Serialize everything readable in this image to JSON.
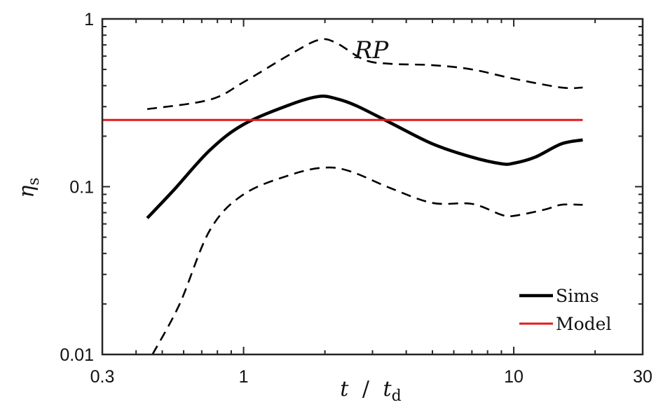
{
  "chart_data": {
    "type": "line",
    "xscale": "log",
    "yscale": "log",
    "xlim": [
      0.3,
      30
    ],
    "ylim": [
      0.01,
      1
    ],
    "xticks": [
      0.3,
      1,
      10,
      30
    ],
    "xtick_labels": [
      "0.3",
      "1",
      "10",
      "30"
    ],
    "yticks": [
      0.01,
      0.1,
      1
    ],
    "ytick_labels": [
      "0.01",
      "0.1",
      "1"
    ],
    "xlabel": {
      "var": "t",
      "sep": "/",
      "var2": "t",
      "sub2": "d"
    },
    "ylabel": {
      "var": "η",
      "sub": "s"
    },
    "annotation": "RP",
    "legend_position": "bottom-right",
    "series": [
      {
        "name": "Sims",
        "legend": true,
        "color": "#000000",
        "style": "solid",
        "x": [
          0.44,
          0.55,
          0.75,
          1.0,
          1.5,
          1.9,
          2.2,
          2.6,
          3.5,
          5,
          7,
          9,
          10,
          12,
          15,
          18
        ],
        "y": [
          0.065,
          0.095,
          0.165,
          0.235,
          0.31,
          0.345,
          0.335,
          0.305,
          0.24,
          0.18,
          0.15,
          0.137,
          0.138,
          0.15,
          0.18,
          0.19
        ]
      },
      {
        "name": "Sims upper bound",
        "legend": false,
        "color": "#000000",
        "style": "dashed",
        "x": [
          0.44,
          0.75,
          1.0,
          1.5,
          1.9,
          2.2,
          2.8,
          3.5,
          5,
          7,
          10,
          15,
          18
        ],
        "y": [
          0.29,
          0.33,
          0.42,
          0.62,
          0.75,
          0.72,
          0.57,
          0.54,
          0.53,
          0.5,
          0.44,
          0.39,
          0.39
        ]
      },
      {
        "name": "Sims lower bound",
        "legend": false,
        "color": "#000000",
        "style": "dashed",
        "x": [
          0.46,
          0.58,
          0.75,
          1.0,
          1.5,
          2.0,
          2.5,
          3.5,
          5,
          7,
          9,
          10,
          13,
          15,
          18
        ],
        "y": [
          0.01,
          0.02,
          0.055,
          0.09,
          0.118,
          0.13,
          0.123,
          0.098,
          0.08,
          0.079,
          0.068,
          0.067,
          0.073,
          0.078,
          0.078
        ]
      },
      {
        "name": "Model",
        "legend": true,
        "color": "#e31a1c",
        "style": "solid",
        "x": [
          0.3,
          18
        ],
        "y": [
          0.25,
          0.25
        ]
      }
    ]
  }
}
